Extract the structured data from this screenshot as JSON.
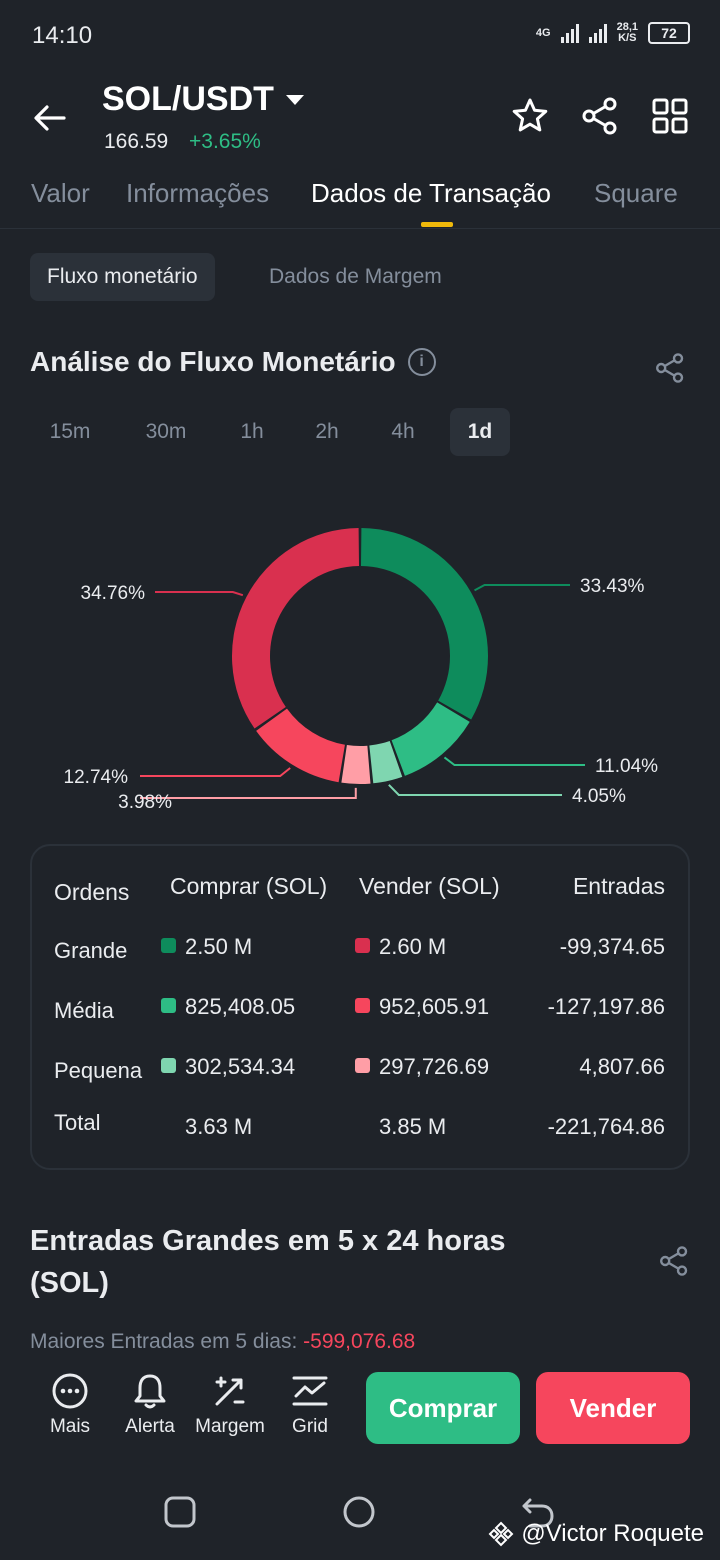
{
  "status_bar": {
    "time": "14:10",
    "network": "4G",
    "speed_top": "28,1",
    "speed_bottom": "K/S",
    "battery": "72"
  },
  "header": {
    "pair": "SOL/USDT",
    "price": "166.59",
    "change": "+3.65%"
  },
  "tabs": [
    {
      "label": "Valor"
    },
    {
      "label": "Informações"
    },
    {
      "label": "Dados de Transação",
      "active": true
    },
    {
      "label": "Square"
    }
  ],
  "segments": {
    "active": "Fluxo monetário",
    "inactive": "Dados de Margem"
  },
  "section": {
    "title": "Análise do Fluxo Monetário"
  },
  "timeframes": [
    "15m",
    "30m",
    "1h",
    "2h",
    "4h",
    "1d"
  ],
  "chart_data": {
    "type": "pie",
    "donut": true,
    "slices": [
      {
        "label": "33.43%",
        "value": 33.43,
        "color": "#0e8c5c"
      },
      {
        "label": "11.04%",
        "value": 11.04,
        "color": "#2ebd85"
      },
      {
        "label": "4.05%",
        "value": 4.05,
        "color": "#7fd6b0"
      },
      {
        "label": "3.98%",
        "value": 3.98,
        "color": "#ff9ea6"
      },
      {
        "label": "12.74%",
        "value": 12.74,
        "color": "#f6465d"
      },
      {
        "label": "34.76%",
        "value": 34.76,
        "color": "#d9304f"
      }
    ]
  },
  "table": {
    "headers": [
      "Ordens",
      "Comprar (SOL)",
      "Vender (SOL)",
      "Entradas"
    ],
    "rows": [
      {
        "label": "Grande",
        "buy": "2.50 M",
        "sell": "2.60 M",
        "net": "-99,374.65",
        "buy_color": "#0e8c5c",
        "sell_color": "#d9304f"
      },
      {
        "label": "Média",
        "buy": "825,408.05",
        "sell": "952,605.91",
        "net": "-127,197.86",
        "buy_color": "#2ebd85",
        "sell_color": "#f6465d"
      },
      {
        "label": "Pequena",
        "buy": "302,534.34",
        "sell": "297,726.69",
        "net": "4,807.66",
        "buy_color": "#7fd6b0",
        "sell_color": "#ff9ea6"
      },
      {
        "label": "Total",
        "buy": "3.63 M",
        "sell": "3.85 M",
        "net": "-221,764.86"
      }
    ]
  },
  "big_inflows": {
    "title": "Entradas Grandes em 5 x 24 horas (SOL)",
    "subtitle_label": "Maiores Entradas em 5 dias:",
    "subtitle_value": "-599,076.68"
  },
  "bottom_bar": {
    "items": [
      {
        "label": "Mais",
        "icon": "more-icon"
      },
      {
        "label": "Alerta",
        "icon": "bell-icon"
      },
      {
        "label": "Margem",
        "icon": "margin-icon"
      },
      {
        "label": "Grid",
        "icon": "grid-trading-icon"
      }
    ],
    "buy": "Comprar",
    "sell": "Vender"
  },
  "watermark": "@Victor Roquete"
}
